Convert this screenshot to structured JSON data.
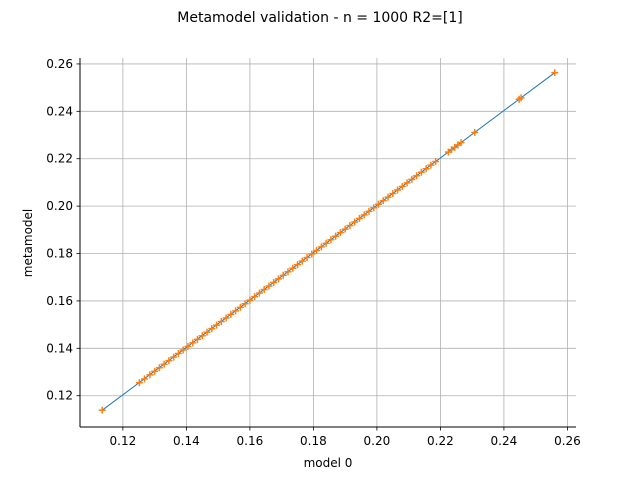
{
  "chart_data": {
    "type": "scatter",
    "title": "Metamodel validation - n = 1000 R2=[1]",
    "xlabel": "model 0",
    "ylabel": "metamodel",
    "xlim": [
      0.1065,
      0.2627
    ],
    "ylim": [
      0.1068,
      0.2625
    ],
    "xticks": [
      "0.12",
      "0.14",
      "0.16",
      "0.18",
      "0.20",
      "0.22",
      "0.24",
      "0.26"
    ],
    "yticks": [
      "0.12",
      "0.14",
      "0.16",
      "0.18",
      "0.20",
      "0.22",
      "0.24",
      "0.26"
    ],
    "grid": true,
    "colors": {
      "reference_line": "#1f77b4",
      "points": "#ff7f0e",
      "grid": "#b0b0b0",
      "axes": "#000000"
    },
    "series": [
      {
        "type": "line",
        "x": [
          0.1135,
          0.256
        ],
        "y": [
          0.1139,
          0.2563
        ]
      },
      {
        "type": "scatter",
        "marker": "+",
        "x": [
          0.1135,
          0.1252,
          0.1268,
          0.1285,
          0.13,
          0.1315,
          0.133,
          0.1345,
          0.136,
          0.1375,
          0.139,
          0.1405,
          0.142,
          0.1435,
          0.145,
          0.1465,
          0.148,
          0.1495,
          0.151,
          0.1525,
          0.154,
          0.1555,
          0.157,
          0.1585,
          0.16,
          0.1615,
          0.163,
          0.1645,
          0.166,
          0.1675,
          0.169,
          0.1705,
          0.172,
          0.1735,
          0.175,
          0.1765,
          0.178,
          0.1795,
          0.181,
          0.1825,
          0.184,
          0.1855,
          0.187,
          0.1885,
          0.19,
          0.1915,
          0.193,
          0.1945,
          0.196,
          0.1975,
          0.199,
          0.2005,
          0.202,
          0.2035,
          0.205,
          0.2065,
          0.208,
          0.2095,
          0.211,
          0.2125,
          0.214,
          0.2155,
          0.217,
          0.2185,
          0.2225,
          0.2235,
          0.2245,
          0.2255,
          0.2265,
          0.2308,
          0.2448,
          0.2454,
          0.256
        ],
        "y": [
          0.1139,
          0.1255,
          0.1271,
          0.1288,
          0.1303,
          0.1318,
          0.1333,
          0.1348,
          0.1363,
          0.1378,
          0.1393,
          0.1408,
          0.1423,
          0.1438,
          0.1453,
          0.1468,
          0.1483,
          0.1498,
          0.1513,
          0.1528,
          0.1543,
          0.1558,
          0.1573,
          0.1588,
          0.1603,
          0.1618,
          0.1633,
          0.1648,
          0.1663,
          0.1678,
          0.1693,
          0.1708,
          0.1723,
          0.1738,
          0.1753,
          0.1768,
          0.1783,
          0.1798,
          0.1813,
          0.1828,
          0.1843,
          0.1858,
          0.1873,
          0.1888,
          0.1903,
          0.1918,
          0.1933,
          0.1948,
          0.1963,
          0.1978,
          0.1993,
          0.2008,
          0.2023,
          0.2038,
          0.2053,
          0.2068,
          0.2083,
          0.2098,
          0.2113,
          0.2128,
          0.2143,
          0.2158,
          0.2173,
          0.2188,
          0.2228,
          0.2238,
          0.2248,
          0.2258,
          0.2268,
          0.2311,
          0.2451,
          0.2457,
          0.2563
        ]
      }
    ]
  }
}
